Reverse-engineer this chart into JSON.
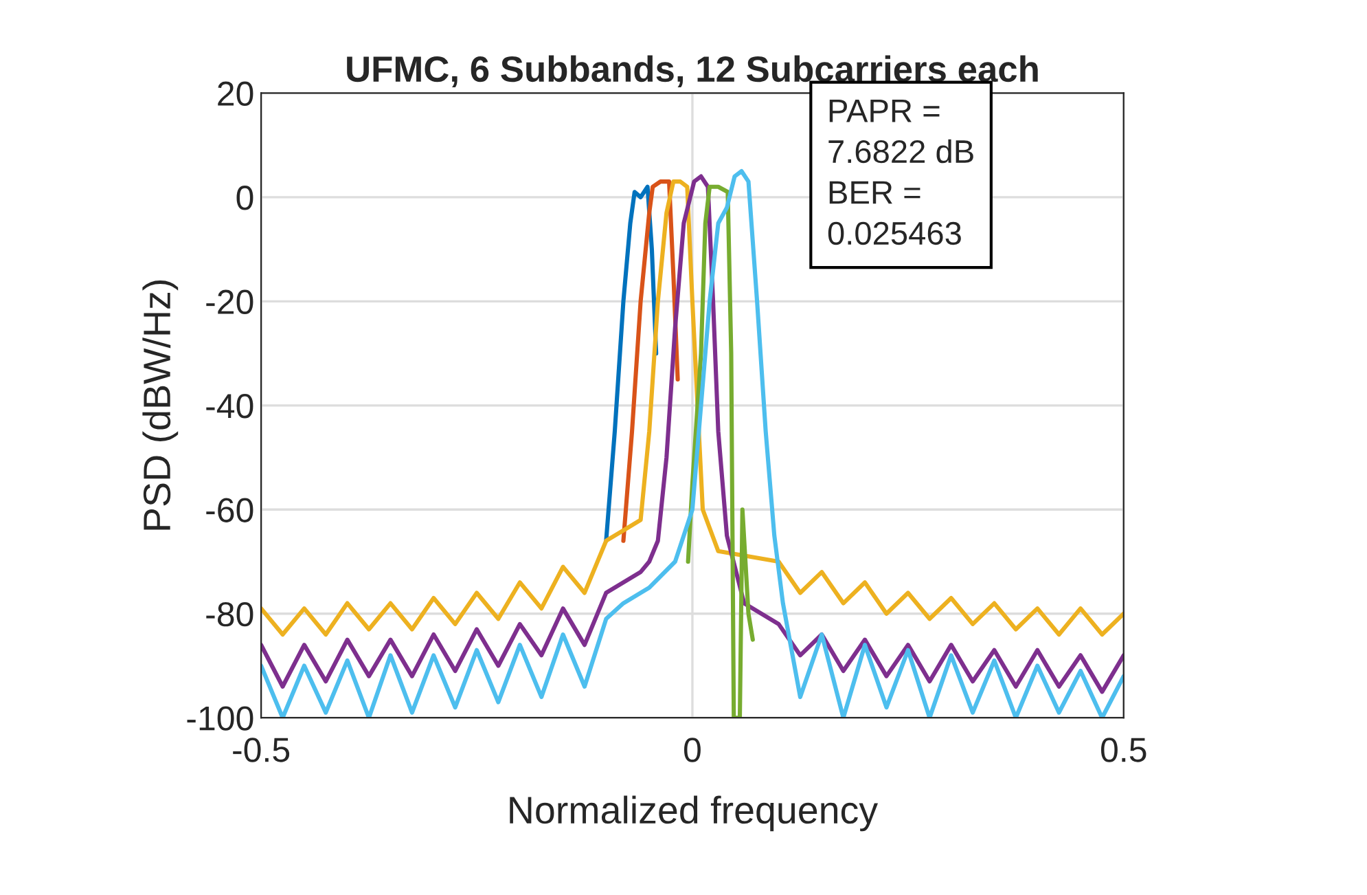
{
  "chart_data": {
    "type": "line",
    "title": "UFMC, 6 Subbands, 12 Subcarriers each",
    "xlabel": "Normalized frequency",
    "ylabel": "PSD (dBW/Hz)",
    "xlim": [
      -0.5,
      0.5
    ],
    "xticks": [
      -0.5,
      0,
      0.5
    ],
    "ylim": [
      -100,
      20
    ],
    "yticks": [
      -100,
      -80,
      -60,
      -40,
      -20,
      0,
      20
    ],
    "grid": true,
    "marker": "none",
    "line_style": "solid",
    "annotations": [
      "PAPR =\n7.6822 dB\nBER =\n0.025463"
    ],
    "series": [
      {
        "color": "#0072bd",
        "x": [
          -0.1,
          -0.09,
          -0.08,
          -0.072,
          -0.067,
          -0.06,
          -0.052,
          -0.047,
          -0.042
        ],
        "values": [
          -66,
          -45,
          -20,
          -5,
          1,
          0,
          2,
          -10,
          -30
        ]
      },
      {
        "color": "#d95319",
        "x": [
          -0.08,
          -0.07,
          -0.06,
          -0.05,
          -0.046,
          -0.037,
          -0.027,
          -0.022,
          -0.017
        ],
        "values": [
          -66,
          -45,
          -20,
          -3,
          2,
          3,
          3,
          -15,
          -35
        ]
      },
      {
        "color": "#edb120",
        "x": [
          -0.5,
          -0.475,
          -0.45,
          -0.425,
          -0.4,
          -0.375,
          -0.35,
          -0.325,
          -0.3,
          -0.275,
          -0.25,
          -0.225,
          -0.2,
          -0.175,
          -0.15,
          -0.125,
          -0.1,
          -0.08,
          -0.06,
          -0.05,
          -0.04,
          -0.03,
          -0.022,
          -0.014,
          -0.006,
          0.0,
          0.006,
          0.012,
          0.03,
          0.1,
          0.125,
          0.15,
          0.175,
          0.2,
          0.225,
          0.25,
          0.275,
          0.3,
          0.325,
          0.35,
          0.375,
          0.4,
          0.425,
          0.45,
          0.475,
          0.5
        ],
        "values": [
          -79,
          -84,
          -79,
          -84,
          -78,
          -83,
          -78,
          -83,
          -77,
          -82,
          -76,
          -81,
          -74,
          -79,
          -71,
          -76,
          -66,
          -64,
          -62,
          -45,
          -20,
          -3,
          3,
          3,
          2,
          -20,
          -40,
          -60,
          -68,
          -70,
          -76,
          -72,
          -78,
          -74,
          -80,
          -76,
          -81,
          -77,
          -82,
          -78,
          -83,
          -79,
          -84,
          -79,
          -84,
          -80
        ]
      },
      {
        "color": "#7e2f8e",
        "x": [
          -0.5,
          -0.475,
          -0.45,
          -0.425,
          -0.4,
          -0.375,
          -0.35,
          -0.325,
          -0.3,
          -0.275,
          -0.25,
          -0.225,
          -0.2,
          -0.175,
          -0.15,
          -0.125,
          -0.1,
          -0.06,
          -0.05,
          -0.04,
          -0.03,
          -0.02,
          -0.01,
          0.002,
          0.01,
          0.018,
          0.024,
          0.03,
          0.04,
          0.06,
          0.1,
          0.125,
          0.15,
          0.175,
          0.2,
          0.225,
          0.25,
          0.275,
          0.3,
          0.325,
          0.35,
          0.375,
          0.4,
          0.425,
          0.45,
          0.475,
          0.5
        ],
        "values": [
          -86,
          -94,
          -86,
          -93,
          -85,
          -92,
          -85,
          -92,
          -84,
          -91,
          -83,
          -90,
          -82,
          -88,
          -79,
          -86,
          -76,
          -72,
          -70,
          -66,
          -50,
          -25,
          -5,
          3,
          4,
          2,
          -20,
          -45,
          -65,
          -78,
          -82,
          -88,
          -84,
          -91,
          -85,
          -92,
          -86,
          -93,
          -86,
          -93,
          -87,
          -94,
          -87,
          -94,
          -88,
          -95,
          -88
        ]
      },
      {
        "color": "#77ac30",
        "x": [
          -0.005,
          0.0,
          0.01,
          0.015,
          0.02,
          0.03,
          0.041,
          0.045,
          0.048,
          0.055,
          0.058,
          0.065,
          0.07
        ],
        "values": [
          -70,
          -55,
          -30,
          -5,
          2,
          2,
          1,
          -30,
          -100,
          -100,
          -60,
          -80,
          -85
        ]
      },
      {
        "color": "#4dbeee",
        "x": [
          -0.5,
          -0.475,
          -0.45,
          -0.425,
          -0.4,
          -0.375,
          -0.35,
          -0.325,
          -0.3,
          -0.275,
          -0.25,
          -0.225,
          -0.2,
          -0.175,
          -0.15,
          -0.125,
          -0.1,
          -0.08,
          -0.05,
          -0.02,
          0.0,
          0.01,
          0.02,
          0.03,
          0.04,
          0.049,
          0.057,
          0.065,
          0.075,
          0.085,
          0.095,
          0.105,
          0.125,
          0.15,
          0.175,
          0.2,
          0.225,
          0.25,
          0.275,
          0.3,
          0.325,
          0.35,
          0.375,
          0.4,
          0.425,
          0.45,
          0.475,
          0.5
        ],
        "values": [
          -90,
          -100,
          -90,
          -99,
          -89,
          -100,
          -88,
          -99,
          -88,
          -98,
          -87,
          -97,
          -86,
          -96,
          -84,
          -94,
          -81,
          -78,
          -75,
          -70,
          -60,
          -40,
          -20,
          -5,
          -2,
          4,
          5,
          3,
          -20,
          -45,
          -65,
          -78,
          -96,
          -84,
          -100,
          -86,
          -98,
          -87,
          -100,
          -88,
          -99,
          -89,
          -100,
          -90,
          -99,
          -91,
          -100,
          -92
        ]
      }
    ]
  }
}
